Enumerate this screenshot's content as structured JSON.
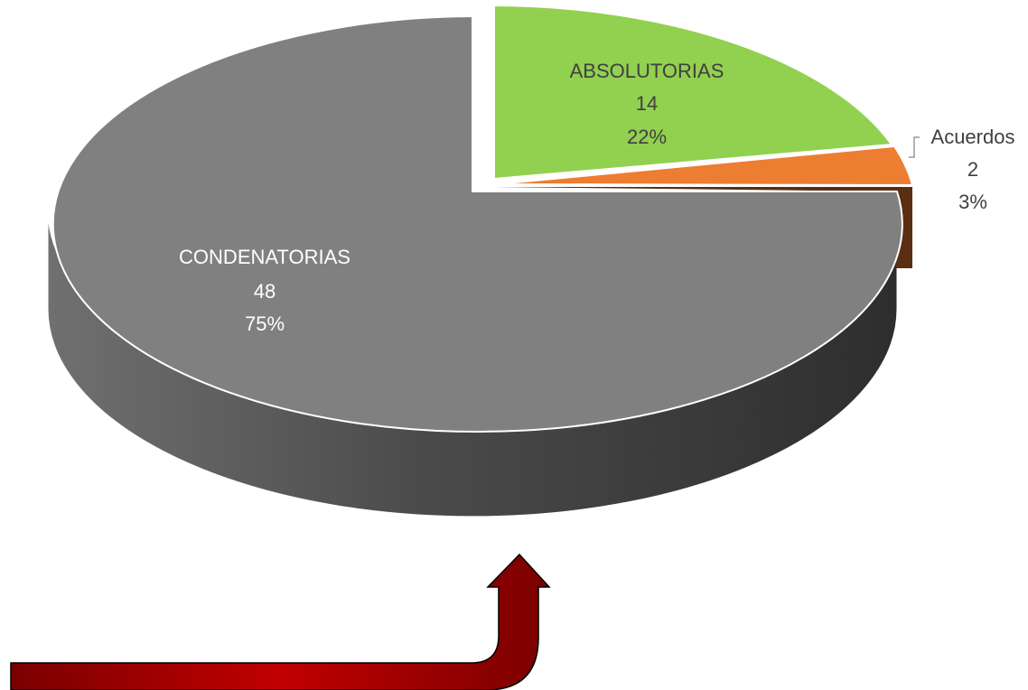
{
  "chart_data": {
    "type": "pie",
    "style": "3d-exploded",
    "title": "",
    "slices": [
      {
        "label": "CONDENATORIAS",
        "value": 48,
        "percent": "75%",
        "color": "#808080"
      },
      {
        "label": "ABSOLUTORIAS",
        "value": 14,
        "percent": "22%",
        "color": "#92d050"
      },
      {
        "label": "Acuerdos",
        "value": 2,
        "percent": "3%",
        "color": "#ed7d31"
      }
    ],
    "legend": "none"
  },
  "annotations": {
    "arrow": {
      "color": "#a50000",
      "direction": "up"
    }
  }
}
